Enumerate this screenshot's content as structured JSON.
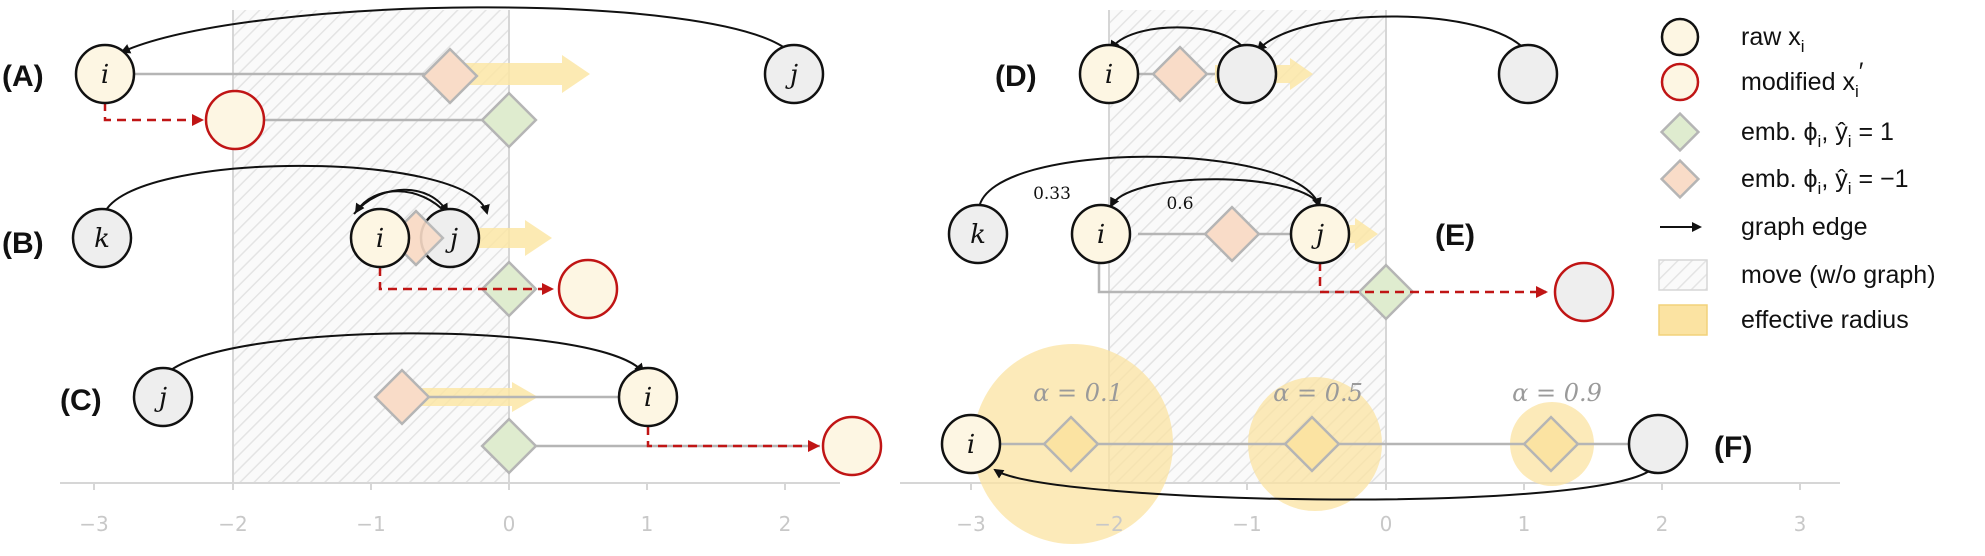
{
  "panels": {
    "A": "(A)",
    "B": "(B)",
    "C": "(C)",
    "D": "(D)",
    "E": "(E)",
    "F": "(F)"
  },
  "nodes": {
    "A_i": "i",
    "A_j": "j",
    "B_k": "k",
    "B_i": "i",
    "B_j": "j",
    "C_j": "j",
    "C_i": "i",
    "D_i": "i",
    "E_k": "k",
    "E_i": "i",
    "E_j": "j",
    "F_i": "i"
  },
  "axis_ticks": [
    "−3",
    "−2",
    "−1",
    "0",
    "1",
    "2",
    "3"
  ],
  "edge_weights": {
    "ki": "0.33",
    "ij": "0.6"
  },
  "alphas": [
    "α = 0.1",
    "α = 0.5",
    "α = 0.9"
  ],
  "legend": {
    "raw": "raw x",
    "raw_sub": "i",
    "modified": "modified x",
    "modified_sub": "i",
    "modified_prime": "′",
    "emb_pos": "emb. ϕ",
    "emb_pos_sub": "i",
    "emb_pos_rest": ", ŷ",
    "emb_pos_sub2": "i",
    "emb_pos_val": " = 1",
    "emb_neg": "emb. ϕ",
    "emb_neg_sub": "i",
    "emb_neg_rest": ", ŷ",
    "emb_neg_sub2": "i",
    "emb_neg_val": " = −1",
    "graph_edge": "graph edge",
    "move": "move (w/o graph)",
    "radius": "effective radius"
  },
  "colors": {
    "raw_fill": "#fdf6e3",
    "modified_stroke": "#c01515",
    "neighbor_fill": "#eeeeee",
    "pos_diamond": "#dfeccf",
    "neg_diamond": "#f9dcc8",
    "arrow_yellow": "#fbe6a6",
    "radius_yellow": "#fbe3a2",
    "hatch": "#e6e6e6"
  }
}
